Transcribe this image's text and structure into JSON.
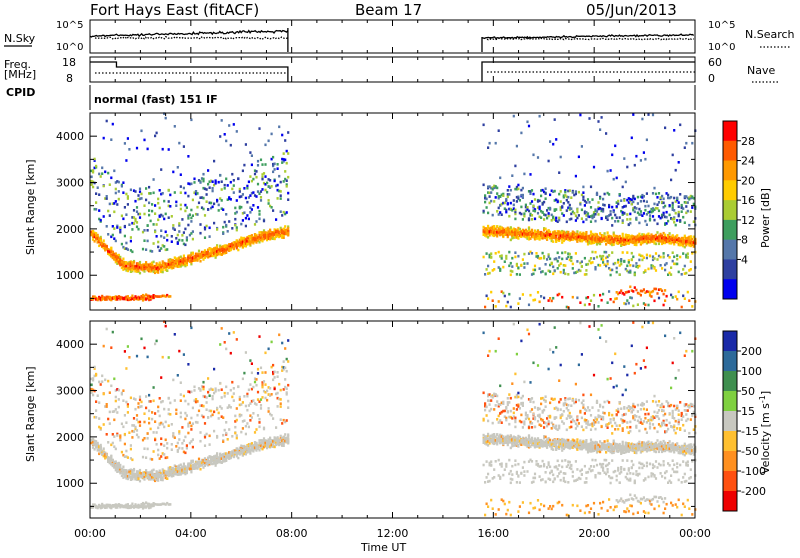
{
  "header": {
    "title": "Fort Hays East (fitACF)",
    "beam": "Beam 17",
    "date": "05/Jun/2013"
  },
  "params": {
    "nsky_label": "N.Sky",
    "nsearch_label": "N.Search",
    "freq_label_1": "Freq.",
    "freq_label_2": "[MHz]",
    "nave_label": "Nave",
    "cpid_label": "CPID",
    "cpid_value": "normal (fast) 151 IF",
    "noise_ticks": [
      "10^5",
      "10^0"
    ],
    "noise_ticks_right": [
      "10^5",
      "10^0"
    ],
    "freq_ticks": [
      "18",
      "8"
    ],
    "nave_ticks": [
      "60",
      "0"
    ],
    "data_gap_hours": [
      7.85,
      15.55
    ]
  },
  "chart_data": [
    {
      "type": "heatmap",
      "panel": "power",
      "xlabel": "",
      "ylabel": "Slant Range [km]",
      "xlim": [
        0,
        24
      ],
      "ylim": [
        250,
        4500
      ],
      "yticks": [
        "1000",
        "2000",
        "3000",
        "4000"
      ],
      "colorbar": {
        "label": "Power [dB]",
        "ticks": [
          "28",
          "24",
          "20",
          "16",
          "12",
          "8",
          "4"
        ],
        "colors": [
          "#ff0000",
          "#ff5a00",
          "#ff9900",
          "#ffcc00",
          "#aacc33",
          "#3e9e5e",
          "#5577aa",
          "#2e3fa0",
          "#0000ee"
        ]
      },
      "features": [
        {
          "desc": "band",
          "t0": 0,
          "t1": 7.85,
          "r": [
            1900,
            1200,
            1150,
            1350,
            1550,
            1800,
            1950
          ]
        },
        {
          "desc": "band",
          "t0": 15.55,
          "t1": 24,
          "r": [
            1950,
            1900,
            1850,
            1800,
            1750,
            1800,
            1700
          ]
        }
      ]
    },
    {
      "type": "heatmap",
      "panel": "velocity",
      "xlabel": "Time UT",
      "ylabel": "Slant Range [km]",
      "xlim": [
        0,
        24
      ],
      "ylim": [
        250,
        4500
      ],
      "xticks": [
        "00:00",
        "04:00",
        "08:00",
        "12:00",
        "16:00",
        "20:00",
        "00:00"
      ],
      "yticks": [
        "1000",
        "2000",
        "3000",
        "4000"
      ],
      "colorbar": {
        "label": "Velocity [m s",
        "label_sup": "-1",
        "label_end": "]",
        "ticks": [
          "200",
          "100",
          "50",
          "15",
          "-15",
          "-50",
          "-100",
          "-200"
        ],
        "colors": [
          "#1a2aa8",
          "#2d6a9a",
          "#3f8f4f",
          "#7fd040",
          "#c8c8c0",
          "#ffc030",
          "#ff9020",
          "#ff5010",
          "#ee0000"
        ]
      }
    }
  ]
}
